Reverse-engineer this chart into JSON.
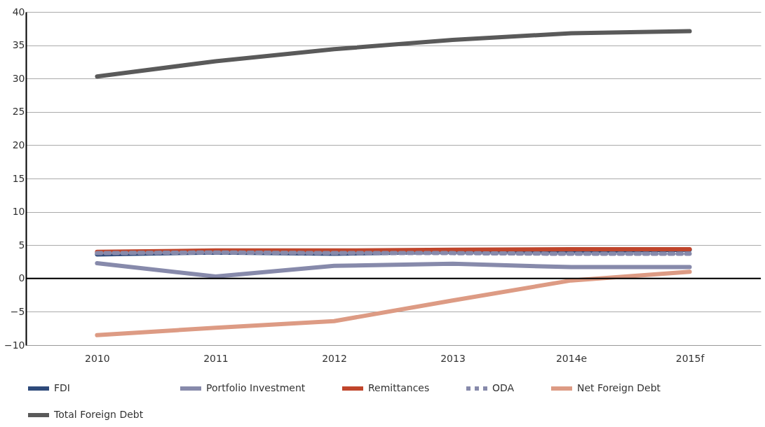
{
  "chart_data": {
    "type": "line",
    "categories": [
      "2010",
      "2011",
      "2012",
      "2013",
      "2014e",
      "2015f"
    ],
    "series": [
      {
        "name": "FDI",
        "color": "#2e4a7a",
        "values": [
          3.6,
          3.9,
          3.7,
          4.0,
          4.1,
          4.3
        ]
      },
      {
        "name": "Portfolio Investment",
        "color": "#878aab",
        "values": [
          2.3,
          0.3,
          1.9,
          2.2,
          1.7,
          1.7
        ]
      },
      {
        "name": "Remittances",
        "color": "#c0452b",
        "values": [
          4.0,
          4.2,
          4.2,
          4.3,
          4.4,
          4.4
        ]
      },
      {
        "name": "ODA",
        "color": "#878aab",
        "line_style": "dashed",
        "values": [
          3.8,
          3.9,
          3.8,
          3.8,
          3.7,
          3.7
        ]
      },
      {
        "name": "Net Foreign Debt",
        "color": "#dd9b84",
        "values": [
          -8.5,
          -7.4,
          -6.4,
          -3.3,
          -0.3,
          1.0
        ]
      },
      {
        "name": "Total Foreign Debt",
        "color": "#5a5a5a",
        "values": [
          30.3,
          32.6,
          34.4,
          35.8,
          36.8,
          37.1
        ]
      }
    ],
    "ylim": [
      -10,
      40
    ],
    "yticks": [
      -10,
      -5,
      0,
      5,
      10,
      15,
      20,
      25,
      30,
      35,
      40
    ],
    "ref_lines": [
      {
        "axis": "y",
        "value": 0,
        "color": "#000000"
      }
    ],
    "grid": "y",
    "legend": "bottom",
    "line_style": "solid",
    "marker": "none"
  }
}
